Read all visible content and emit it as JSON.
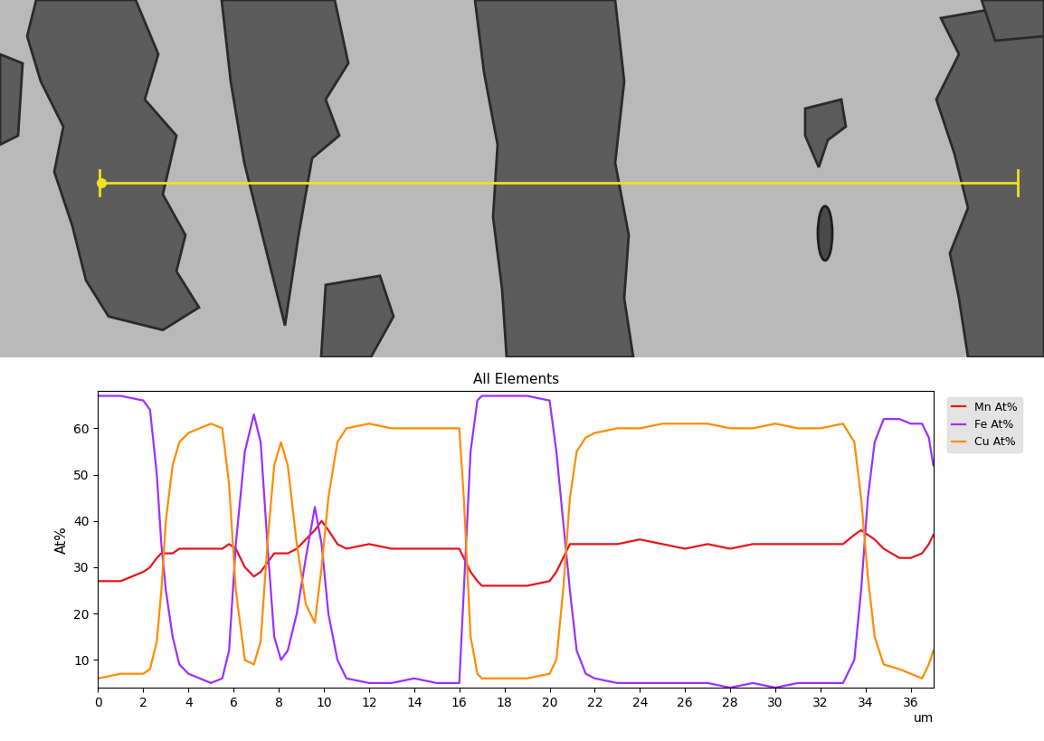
{
  "chart_data": {
    "type": "line",
    "title": "All Elements",
    "y_label": "At%",
    "x_label": "um",
    "x": [
      0,
      1,
      2,
      2.3,
      2.6,
      2.8,
      3,
      3.3,
      3.6,
      4,
      5,
      5.5,
      5.8,
      6.1,
      6.5,
      6.9,
      7.2,
      7.5,
      7.8,
      8.1,
      8.4,
      8.8,
      9.2,
      9.6,
      9.9,
      10.2,
      10.6,
      11,
      12,
      13,
      14,
      15,
      16,
      16.2,
      16.5,
      16.8,
      17,
      18,
      19,
      20,
      20.3,
      20.6,
      20.9,
      21.2,
      21.6,
      22,
      23,
      24,
      25,
      26,
      27,
      28,
      29,
      30,
      31,
      32,
      33,
      33.5,
      33.8,
      34.1,
      34.4,
      34.8,
      35.5,
      36,
      36.5,
      36.8,
      37
    ],
    "series": [
      {
        "name": "Mn At%",
        "color": "#e8141a",
        "values": [
          27,
          27,
          29,
          30,
          32,
          33,
          33,
          33,
          34,
          34,
          34,
          34,
          35,
          34,
          30,
          28,
          29,
          31,
          33,
          33,
          33,
          34,
          36,
          38,
          40,
          38,
          35,
          34,
          35,
          34,
          34,
          34,
          34,
          32,
          29,
          27,
          26,
          26,
          26,
          27,
          29,
          32,
          35,
          35,
          35,
          35,
          35,
          36,
          35,
          34,
          35,
          34,
          35,
          35,
          35,
          35,
          35,
          37,
          38,
          37,
          36,
          34,
          32,
          32,
          33,
          35,
          37
        ]
      },
      {
        "name": "Fe At%",
        "color": "#9b30ff",
        "values": [
          67,
          67,
          66,
          64,
          50,
          35,
          25,
          15,
          9,
          7,
          5,
          6,
          12,
          35,
          55,
          63,
          57,
          35,
          15,
          10,
          12,
          20,
          32,
          43,
          35,
          20,
          10,
          6,
          5,
          5,
          6,
          5,
          5,
          25,
          55,
          66,
          67,
          67,
          67,
          66,
          55,
          40,
          25,
          12,
          7,
          6,
          5,
          5,
          5,
          5,
          5,
          4,
          5,
          4,
          5,
          5,
          5,
          10,
          25,
          45,
          57,
          62,
          62,
          61,
          61,
          58,
          52
        ]
      },
      {
        "name": "Cu At%",
        "color": "#ff8c00",
        "values": [
          6,
          7,
          7,
          8,
          14,
          25,
          40,
          52,
          57,
          59,
          61,
          60,
          48,
          25,
          10,
          9,
          14,
          35,
          52,
          57,
          52,
          35,
          22,
          18,
          30,
          45,
          57,
          60,
          61,
          60,
          60,
          60,
          60,
          45,
          15,
          7,
          6,
          6,
          6,
          7,
          10,
          25,
          45,
          55,
          58,
          59,
          60,
          60,
          61,
          61,
          61,
          60,
          60,
          61,
          60,
          60,
          61,
          57,
          45,
          28,
          15,
          9,
          8,
          7,
          6,
          9,
          12
        ]
      }
    ],
    "xlim": [
      0,
      37
    ],
    "ylim": [
      4,
      68
    ],
    "xticks": [
      0,
      2,
      4,
      6,
      8,
      10,
      12,
      14,
      16,
      18,
      20,
      22,
      24,
      26,
      28,
      30,
      32,
      34,
      36
    ],
    "yticks": [
      10,
      20,
      30,
      40,
      50,
      60
    ],
    "legend": "upper right",
    "grid": false
  }
}
